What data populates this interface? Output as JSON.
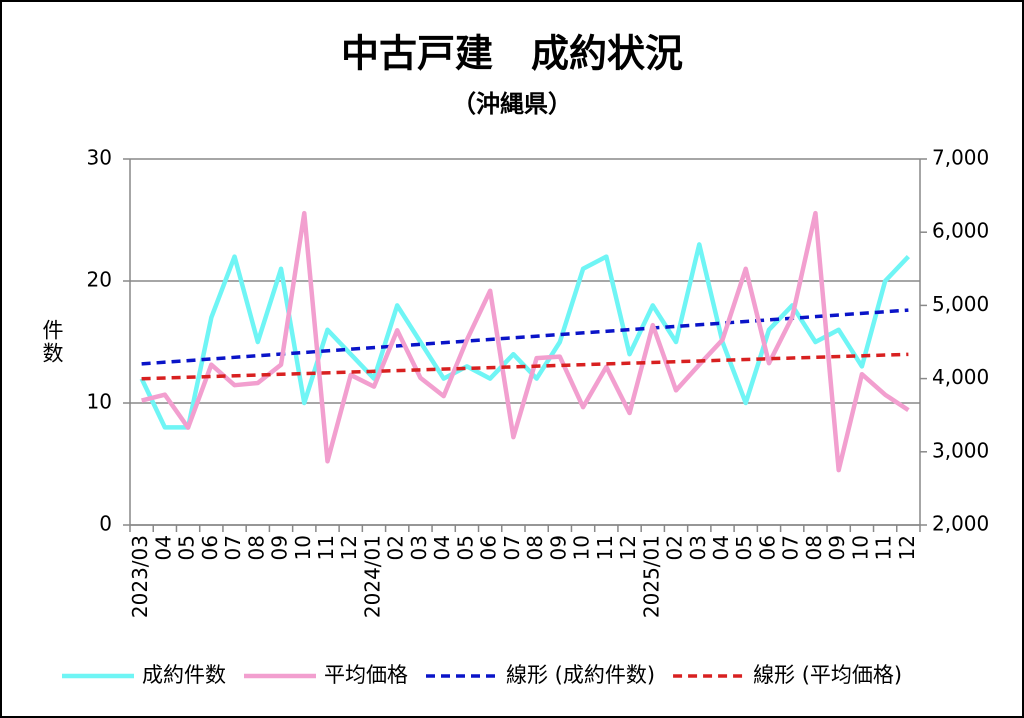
{
  "chart_data": {
    "type": "line",
    "title": "中古戸建　成約状況",
    "subtitle": "（沖縄県）",
    "y_label": "件数",
    "categories": [
      "2023/03",
      "04",
      "05",
      "06",
      "07",
      "08",
      "09",
      "10",
      "11",
      "12",
      "2024/01",
      "02",
      "03",
      "04",
      "05",
      "06",
      "07",
      "08",
      "09",
      "10",
      "11",
      "12",
      "2025/01",
      "02",
      "03",
      "04",
      "05",
      "06",
      "07",
      "08",
      "09",
      "10",
      "11",
      "12"
    ],
    "ylim": [
      0,
      30
    ],
    "yticks": [
      0,
      10,
      20,
      30
    ],
    "y2lim": [
      2000,
      7000
    ],
    "y2ticks": [
      {
        "value": 2000,
        "label": "2,000"
      },
      {
        "value": 3000,
        "label": "3,000"
      },
      {
        "value": 4000,
        "label": "4,000"
      },
      {
        "value": 5000,
        "label": "5,000"
      },
      {
        "value": 6000,
        "label": "6,000"
      },
      {
        "value": 7000,
        "label": "7,000"
      }
    ],
    "grid": true,
    "legend": "bottom",
    "series": [
      {
        "name": "成約件数",
        "color": "#6ff5f5",
        "values": [
          12,
          8,
          8,
          17,
          22,
          15,
          21,
          10,
          16,
          14,
          12,
          18,
          15,
          12,
          13,
          12,
          14,
          12,
          15,
          21,
          22,
          14,
          18,
          15,
          23,
          15,
          10,
          16,
          18,
          15,
          16,
          13,
          20,
          22
        ],
        "trend": {
          "name": "線形 (成約件数)",
          "color": "#0a14c8"
        }
      },
      {
        "name": "平均価格",
        "color": "#f29fcf",
        "axis": "y2",
        "values": [
          3700,
          3780,
          3330,
          4190,
          3910,
          3940,
          4190,
          6260,
          2870,
          4050,
          3890,
          4660,
          4010,
          3760,
          4530,
          5200,
          3200,
          4280,
          4300,
          3610,
          4160,
          3530,
          4730,
          3840,
          4190,
          4530,
          5500,
          4210,
          4840,
          6260,
          2750,
          4060,
          3780,
          3570
        ],
        "trend": {
          "name": "線形 (平均価格)",
          "color": "#d82020"
        }
      }
    ]
  }
}
